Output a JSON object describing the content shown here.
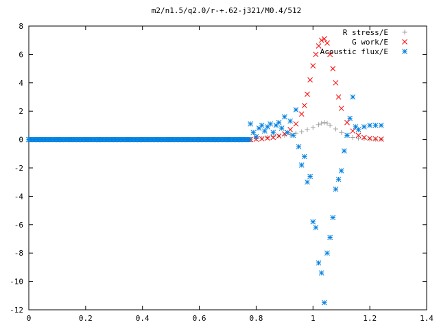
{
  "chart_data": {
    "type": "scatter",
    "title": "m2/n1.5/q2.0/r-+.62-j321/M0.4/512",
    "xlabel": "",
    "ylabel": "",
    "xlim": [
      0,
      1.4
    ],
    "ylim": [
      -12,
      8
    ],
    "xticks": [
      "0",
      "0.2",
      "0.4",
      "0.6",
      "0.8",
      "1",
      "1.2",
      "1.4"
    ],
    "yticks": [
      "-12",
      "-10",
      "-8",
      "-6",
      "-4",
      "-2",
      "0",
      "2",
      "4",
      "6",
      "8"
    ],
    "grid": false,
    "legend": "top-right",
    "series": [
      {
        "name": "R stress/E",
        "color": "#a0a0a0",
        "marker": "plus",
        "x": [
          0.78,
          0.8,
          0.82,
          0.84,
          0.86,
          0.88,
          0.9,
          0.92,
          0.94,
          0.96,
          0.98,
          1.0,
          1.02,
          1.03,
          1.04,
          1.05,
          1.06,
          1.08,
          1.1,
          1.12,
          1.14,
          1.16,
          1.18,
          1.2,
          1.22,
          1.24
        ],
        "y": [
          0.0,
          0.05,
          0.1,
          0.15,
          0.2,
          0.25,
          0.3,
          0.35,
          0.45,
          0.55,
          0.7,
          0.85,
          1.05,
          1.15,
          1.2,
          1.15,
          1.0,
          0.75,
          0.5,
          0.3,
          0.15,
          0.08,
          0.05,
          0.03,
          0.02,
          0.02
        ]
      },
      {
        "name": "G work/E",
        "color": "#ff0000",
        "marker": "cross",
        "x": [
          0.78,
          0.8,
          0.82,
          0.84,
          0.86,
          0.88,
          0.9,
          0.92,
          0.94,
          0.96,
          0.97,
          0.98,
          0.99,
          1.0,
          1.01,
          1.02,
          1.03,
          1.04,
          1.05,
          1.06,
          1.07,
          1.08,
          1.09,
          1.1,
          1.12,
          1.14,
          1.16,
          1.18,
          1.2,
          1.22,
          1.24
        ],
        "y": [
          0.0,
          0.02,
          0.05,
          0.1,
          0.15,
          0.25,
          0.4,
          0.7,
          1.1,
          1.8,
          2.4,
          3.2,
          4.2,
          5.2,
          6.0,
          6.6,
          7.0,
          7.1,
          6.8,
          6.0,
          5.0,
          4.0,
          3.0,
          2.2,
          1.2,
          0.6,
          0.3,
          0.15,
          0.08,
          0.05,
          0.03
        ]
      },
      {
        "name": "Acoustic flux/E",
        "color": "#0080e0",
        "marker": "star",
        "x": [
          0.0,
          0.05,
          0.1,
          0.15,
          0.2,
          0.25,
          0.3,
          0.35,
          0.4,
          0.45,
          0.5,
          0.55,
          0.6,
          0.65,
          0.7,
          0.75,
          0.78,
          0.79,
          0.8,
          0.81,
          0.82,
          0.83,
          0.84,
          0.85,
          0.86,
          0.87,
          0.88,
          0.89,
          0.9,
          0.91,
          0.92,
          0.93,
          0.94,
          0.95,
          0.96,
          0.97,
          0.98,
          0.99,
          1.0,
          1.01,
          1.02,
          1.03,
          1.04,
          1.05,
          1.06,
          1.07,
          1.08,
          1.09,
          1.1,
          1.11,
          1.12,
          1.13,
          1.14,
          1.15,
          1.16,
          1.18,
          1.2,
          1.22,
          1.24
        ],
        "y": [
          0.0,
          0.0,
          0.0,
          0.0,
          0.0,
          0.0,
          0.0,
          0.0,
          0.0,
          0.0,
          0.0,
          0.0,
          0.0,
          0.0,
          0.0,
          0.0,
          1.1,
          0.5,
          0.2,
          0.8,
          1.0,
          0.6,
          0.9,
          1.1,
          0.5,
          1.0,
          1.2,
          0.8,
          1.6,
          0.5,
          1.3,
          0.3,
          2.1,
          -0.5,
          -1.8,
          -1.2,
          -3.0,
          -2.6,
          -5.8,
          -6.2,
          -8.7,
          -9.4,
          -11.5,
          -8.0,
          -6.9,
          -5.5,
          -3.5,
          -2.8,
          -2.2,
          -0.8,
          0.3,
          1.5,
          3.0,
          0.9,
          0.7,
          0.9,
          1.0,
          1.0,
          1.0
        ]
      }
    ]
  }
}
